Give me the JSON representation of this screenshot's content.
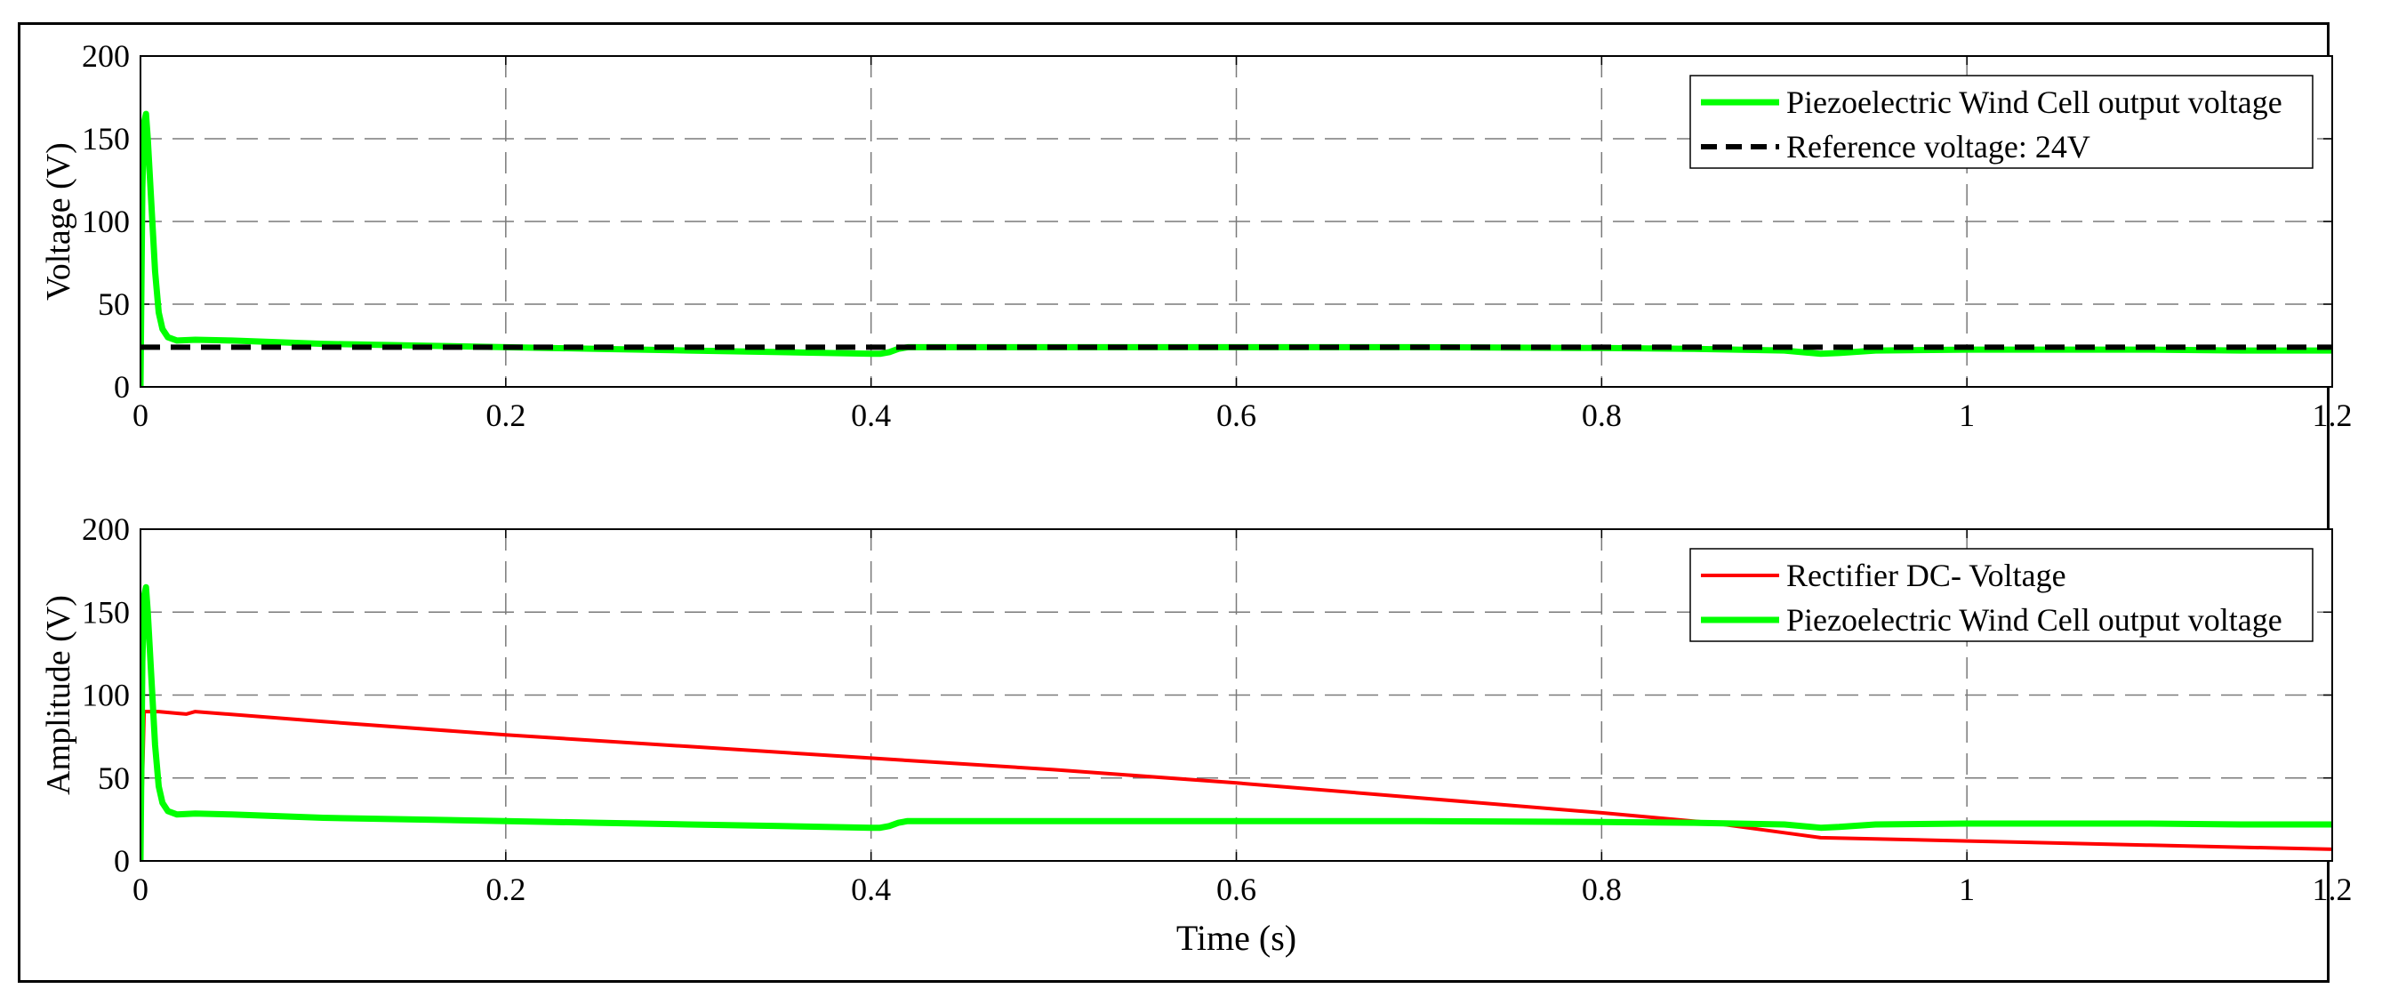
{
  "chart_data": [
    {
      "type": "line",
      "title": "",
      "xlabel": "",
      "ylabel": "Voltage (V)",
      "xlim": [
        0,
        1.2
      ],
      "ylim": [
        0,
        200
      ],
      "xticks": [
        0,
        0.2,
        0.4,
        0.6,
        0.8,
        1,
        1.2
      ],
      "xtick_labels": [
        "0",
        "0.2",
        "0.4",
        "0.6",
        "0.8",
        "1",
        "1.2"
      ],
      "yticks": [
        0,
        50,
        100,
        150,
        200
      ],
      "ytick_labels": [
        "0",
        "50",
        "100",
        "150",
        "200"
      ],
      "grid": true,
      "legend_position": "top-right",
      "series": [
        {
          "name": "Piezoelectric Wind Cell output voltage",
          "color": "#00ff00",
          "style": "solid",
          "x": [
            0,
            0.001,
            0.002,
            0.003,
            0.004,
            0.006,
            0.008,
            0.01,
            0.012,
            0.015,
            0.02,
            0.03,
            0.05,
            0.1,
            0.15,
            0.2,
            0.25,
            0.3,
            0.35,
            0.4,
            0.405,
            0.41,
            0.415,
            0.42,
            0.45,
            0.5,
            0.6,
            0.7,
            0.8,
            0.85,
            0.9,
            0.92,
            0.93,
            0.95,
            1.0,
            1.05,
            1.1,
            1.15,
            1.2
          ],
          "y": [
            0,
            120,
            160,
            165,
            150,
            110,
            70,
            45,
            35,
            30,
            28,
            28.5,
            28,
            26,
            25,
            24,
            23,
            22,
            21,
            20,
            20,
            21,
            23,
            24,
            24,
            24,
            24,
            24,
            23.5,
            23,
            22,
            20,
            20.5,
            22,
            22.5,
            22.5,
            22.5,
            22,
            22
          ]
        },
        {
          "name": "Reference voltage: 24V",
          "color": "#000000",
          "style": "dashed",
          "x": [
            0,
            1.2
          ],
          "y": [
            24,
            24
          ]
        }
      ]
    },
    {
      "type": "line",
      "title": "",
      "xlabel": "Time (s)",
      "ylabel": "Amplitude (V)",
      "xlim": [
        0,
        1.2
      ],
      "ylim": [
        0,
        200
      ],
      "xticks": [
        0,
        0.2,
        0.4,
        0.6,
        0.8,
        1,
        1.2
      ],
      "xtick_labels": [
        "0",
        "0.2",
        "0.4",
        "0.6",
        "0.8",
        "1",
        "1.2"
      ],
      "yticks": [
        0,
        50,
        100,
        150,
        200
      ],
      "ytick_labels": [
        "0",
        "50",
        "100",
        "150",
        "200"
      ],
      "grid": true,
      "legend_position": "top-right",
      "series": [
        {
          "name": "Rectifier DC- Voltage",
          "color": "#ff0000",
          "style": "solid",
          "x": [
            0,
            0.002,
            0.01,
            0.02,
            0.025,
            0.03,
            0.1,
            0.2,
            0.3,
            0.4,
            0.5,
            0.6,
            0.7,
            0.8,
            0.86,
            0.9,
            0.92,
            1.0,
            1.1,
            1.2
          ],
          "y": [
            0,
            90,
            90,
            89,
            88.5,
            90,
            84,
            76,
            69,
            62,
            55,
            47,
            38,
            29,
            23,
            17,
            14,
            12,
            9.5,
            7
          ]
        },
        {
          "name": "Piezoelectric Wind Cell output voltage",
          "color": "#00ff00",
          "style": "solid",
          "x": [
            0,
            0.001,
            0.002,
            0.003,
            0.004,
            0.006,
            0.008,
            0.01,
            0.012,
            0.015,
            0.02,
            0.03,
            0.05,
            0.1,
            0.15,
            0.2,
            0.25,
            0.3,
            0.35,
            0.4,
            0.405,
            0.41,
            0.415,
            0.42,
            0.45,
            0.5,
            0.6,
            0.7,
            0.8,
            0.85,
            0.9,
            0.92,
            0.93,
            0.95,
            1.0,
            1.05,
            1.1,
            1.15,
            1.2
          ],
          "y": [
            0,
            120,
            160,
            165,
            150,
            110,
            70,
            45,
            35,
            30,
            28,
            28.5,
            28,
            26,
            25,
            24,
            23,
            22,
            21,
            20,
            20,
            21,
            23,
            24,
            24,
            24,
            24,
            24,
            23.5,
            23,
            22,
            20,
            20.5,
            22,
            22.5,
            22.5,
            22.5,
            22,
            22
          ]
        }
      ]
    }
  ]
}
